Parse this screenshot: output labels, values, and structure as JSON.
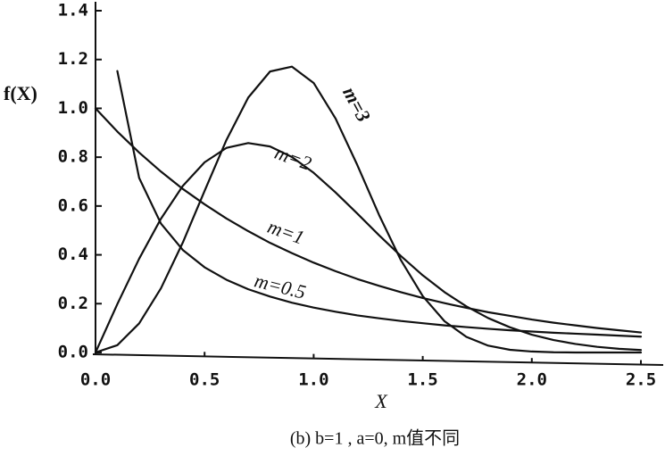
{
  "chart_data": {
    "type": "line",
    "y_label": "f(X)",
    "x_label": "X",
    "caption": "(b)    b=1 , a=0, m值不同",
    "x": [
      0,
      0.1,
      0.2,
      0.3,
      0.4,
      0.5,
      0.6,
      0.7,
      0.8,
      0.9,
      1.0,
      1.1,
      1.2,
      1.3,
      1.4,
      1.5,
      1.6,
      1.7,
      1.8,
      1.9,
      2.0,
      2.1,
      2.2,
      2.3,
      2.4,
      2.5
    ],
    "series": [
      {
        "name": "m=3",
        "color": "#111111",
        "values": [
          0,
          0.03,
          0.119,
          0.263,
          0.45,
          0.662,
          0.87,
          1.044,
          1.151,
          1.171,
          1.104,
          0.959,
          0.768,
          0.563,
          0.378,
          0.231,
          0.128,
          0.064,
          0.028,
          0.011,
          0.004,
          0.001,
          0,
          0,
          0,
          0
        ]
      },
      {
        "name": "m=2",
        "color": "#111111",
        "values": [
          0,
          0.198,
          0.384,
          0.548,
          0.682,
          0.779,
          0.838,
          0.858,
          0.844,
          0.801,
          0.736,
          0.656,
          0.569,
          0.48,
          0.395,
          0.316,
          0.247,
          0.189,
          0.141,
          0.103,
          0.073,
          0.051,
          0.035,
          0.023,
          0.015,
          0.01
        ]
      },
      {
        "name": "m=1",
        "color": "#111111",
        "values": [
          1.0,
          0.905,
          0.819,
          0.741,
          0.67,
          0.607,
          0.549,
          0.497,
          0.449,
          0.407,
          0.368,
          0.333,
          0.301,
          0.273,
          0.247,
          0.223,
          0.202,
          0.183,
          0.165,
          0.15,
          0.135,
          0.122,
          0.111,
          0.1,
          0.091,
          0.082
        ]
      },
      {
        "name": "m=0.5",
        "color": "#111111",
        "values": [
          null,
          1.153,
          0.715,
          0.528,
          0.42,
          0.349,
          0.298,
          0.259,
          0.229,
          0.204,
          0.184,
          0.167,
          0.152,
          0.14,
          0.129,
          0.12,
          0.111,
          0.104,
          0.097,
          0.091,
          0.086,
          0.081,
          0.077,
          0.073,
          0.069,
          0.065
        ]
      }
    ],
    "xlim": [
      0,
      2.5
    ],
    "ylim": [
      0,
      1.4
    ],
    "xticks": [
      {
        "value": 0,
        "label": "0.0"
      },
      {
        "value": 0.5,
        "label": "0.5"
      },
      {
        "value": 1,
        "label": "1.0"
      },
      {
        "value": 1.5,
        "label": "1.5"
      },
      {
        "value": 2,
        "label": "2.0"
      },
      2.5
    ],
    "yticks": [
      {
        "value": 0,
        "label": "0.0"
      },
      {
        "value": 0.2,
        "label": "0.2"
      },
      {
        "value": 0.4,
        "label": "0.4"
      },
      {
        "value": 0.6,
        "label": "0.6"
      },
      {
        "value": 0.8,
        "label": "0.8"
      },
      {
        "value": 1,
        "label": "1.0"
      },
      {
        "value": 1.2,
        "label": "1.2"
      },
      1.4
    ],
    "grid": false
  }
}
